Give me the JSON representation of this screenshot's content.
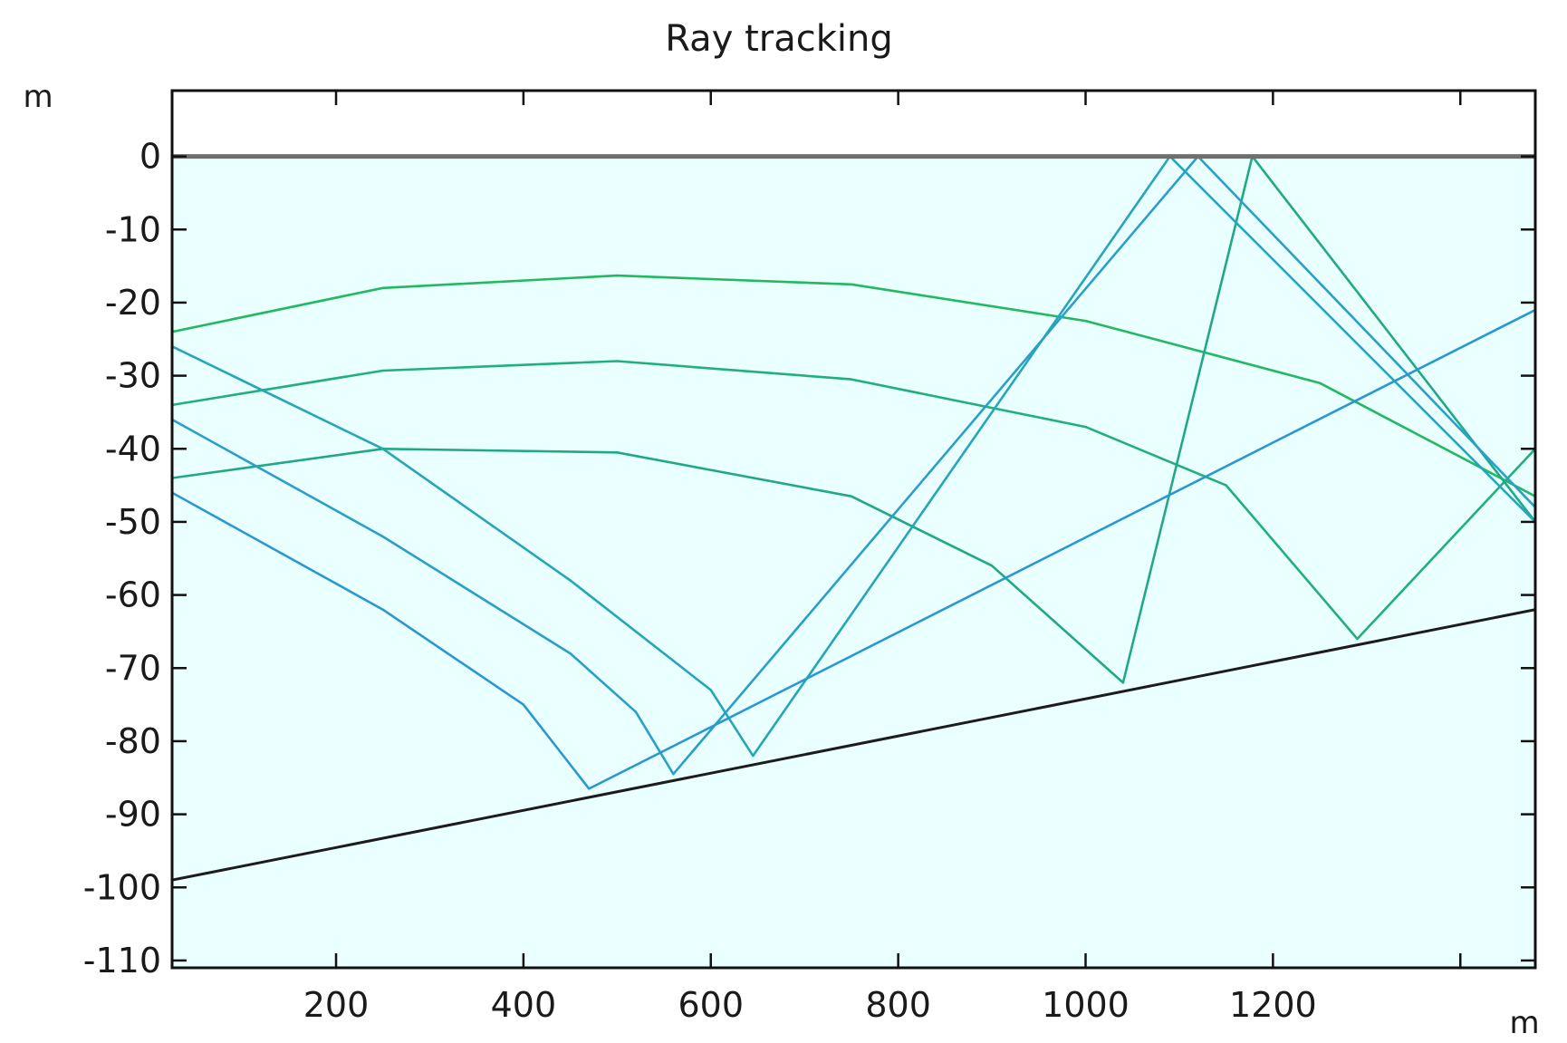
{
  "chart_data": {
    "type": "line",
    "title": "Ray tracking",
    "xlabel": "m",
    "ylabel": "m",
    "xlim": [
      25,
      1480
    ],
    "ylim": [
      -111,
      9
    ],
    "xticks": [
      200,
      400,
      600,
      800,
      1000,
      1200
    ],
    "xticks_unlabeled": [
      1400
    ],
    "yticks": [
      0,
      -10,
      -20,
      -30,
      -40,
      -50,
      -60,
      -70,
      -80,
      -90,
      -100,
      -110
    ],
    "grid": false,
    "background_color": "#eaffff",
    "surface": {
      "y": 0,
      "color": "#6e6e6e"
    },
    "seabed": {
      "points": [
        [
          25,
          -99
        ],
        [
          1480,
          -62
        ]
      ],
      "color": "#1c1c1c"
    },
    "series": [
      {
        "color": "#24b860",
        "points": [
          [
            25,
            -24
          ],
          [
            250,
            -18
          ],
          [
            500,
            -16.3
          ],
          [
            750,
            -17.5
          ],
          [
            1000,
            -22.5
          ],
          [
            1250,
            -31
          ],
          [
            1480,
            -46.5
          ]
        ]
      },
      {
        "color": "#22b07a",
        "points": [
          [
            25,
            -34
          ],
          [
            250,
            -29.3
          ],
          [
            500,
            -28
          ],
          [
            750,
            -30.5
          ],
          [
            1000,
            -37
          ],
          [
            1150,
            -45
          ],
          [
            1290,
            -66
          ],
          [
            1480,
            -40
          ]
        ]
      },
      {
        "color": "#22a888",
        "points": [
          [
            25,
            -44
          ],
          [
            250,
            -40
          ],
          [
            500,
            -40.5
          ],
          [
            750,
            -46.5
          ],
          [
            900,
            -56
          ],
          [
            1040,
            -72
          ],
          [
            1178,
            0
          ],
          [
            1480,
            -50
          ]
        ]
      },
      {
        "color": "#26a6b8",
        "points": [
          [
            25,
            -26
          ],
          [
            250,
            -40
          ],
          [
            450,
            -58
          ],
          [
            600,
            -73
          ],
          [
            645,
            -82
          ],
          [
            1090,
            0
          ],
          [
            1480,
            -50
          ]
        ]
      },
      {
        "color": "#2aa0c8",
        "points": [
          [
            25,
            -36
          ],
          [
            250,
            -52
          ],
          [
            450,
            -68
          ],
          [
            520,
            -76
          ],
          [
            560,
            -84.5
          ],
          [
            1120,
            0
          ],
          [
            1480,
            -48
          ]
        ]
      },
      {
        "color": "#2a98d0",
        "points": [
          [
            25,
            -46
          ],
          [
            250,
            -62
          ],
          [
            400,
            -75
          ],
          [
            470,
            -86.5
          ],
          [
            1480,
            -21
          ]
        ]
      }
    ]
  }
}
